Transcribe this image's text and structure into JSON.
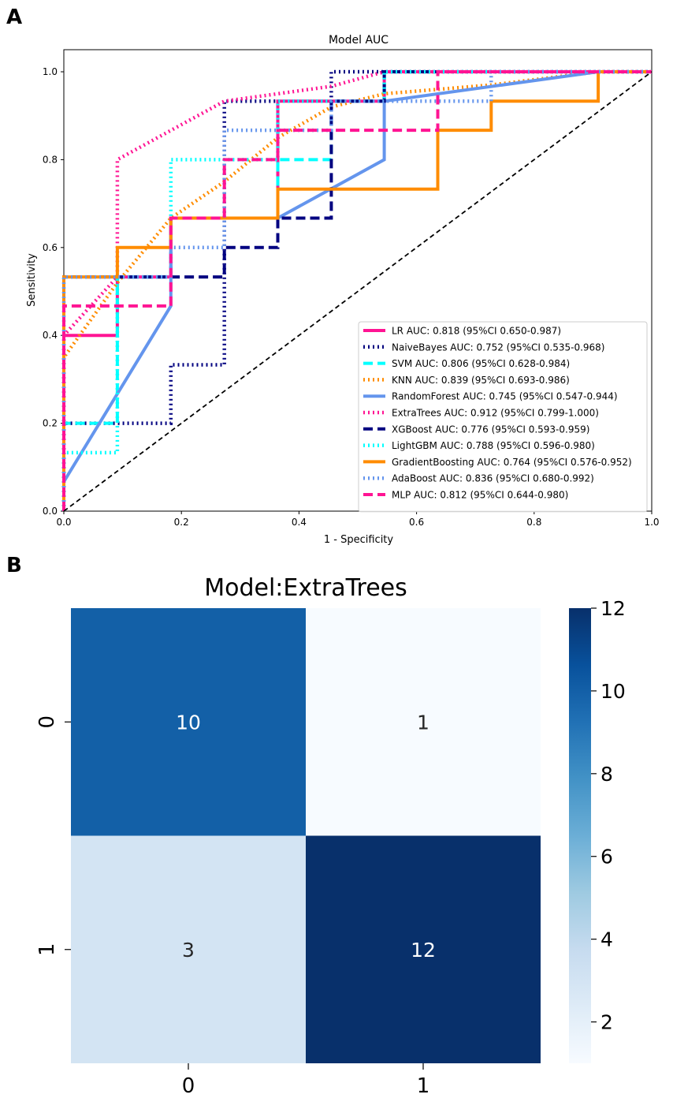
{
  "panels": {
    "a_label": "A",
    "b_label": "B"
  },
  "chart_data": [
    {
      "type": "line",
      "title": "Model AUC",
      "xlabel": "1 - Specificity",
      "ylabel": "Sensitivity",
      "xlim": [
        0,
        1
      ],
      "ylim": [
        0,
        1
      ],
      "xticks": [
        "0.0",
        "0.2",
        "0.4",
        "0.6",
        "0.8",
        "1.0"
      ],
      "yticks": [
        "0.0",
        "0.2",
        "0.4",
        "0.6",
        "0.8",
        "1.0"
      ],
      "grid": false,
      "legend_position": "lower-right",
      "reference_line": {
        "x": [
          0,
          1
        ],
        "y": [
          0,
          1
        ],
        "style": "dashed",
        "color": "#000000"
      },
      "series": [
        {
          "name": "LR AUC: 0.818 (95%CI 0.650-0.987)",
          "color": "#ff1493",
          "style": "solid",
          "x": [
            0,
            0,
            0.091,
            0.091,
            0.182,
            0.182,
            0.364,
            0.364,
            0.545,
            0.545,
            1.0
          ],
          "y": [
            0,
            0.4,
            0.4,
            0.533,
            0.533,
            0.667,
            0.667,
            0.933,
            0.933,
            1.0,
            1.0
          ]
        },
        {
          "name": "NaiveBayes AUC: 0.752 (95%CI 0.535-0.968)",
          "color": "#000080",
          "style": "dotted",
          "x": [
            0,
            0,
            0.182,
            0.182,
            0.273,
            0.273,
            0.455,
            0.455,
            1.0
          ],
          "y": [
            0,
            0.2,
            0.2,
            0.333,
            0.333,
            0.933,
            0.933,
            1.0,
            1.0
          ]
        },
        {
          "name": "SVM AUC: 0.806 (95%CI 0.628-0.984)",
          "color": "#00ffff",
          "style": "dashed",
          "x": [
            0,
            0,
            0.091,
            0.091,
            0.182,
            0.182,
            0.364,
            0.364,
            0.455,
            0.455,
            0.545,
            0.545,
            0.909,
            1.0
          ],
          "y": [
            0,
            0.2,
            0.2,
            0.533,
            0.533,
            0.667,
            0.667,
            0.8,
            0.8,
            0.933,
            0.933,
            1.0,
            1.0,
            1.0
          ]
        },
        {
          "name": "KNN AUC: 0.839 (95%CI 0.693-0.986)",
          "color": "#ff8c00",
          "style": "dotted",
          "x": [
            0,
            0,
            0.091,
            0.182,
            0.273,
            0.364,
            0.455,
            0.545,
            0.727,
            0.909,
            1.0
          ],
          "y": [
            0,
            0.35,
            0.52,
            0.667,
            0.75,
            0.85,
            0.92,
            0.95,
            0.97,
            1.0,
            1.0
          ]
        },
        {
          "name": "RandomForest AUC: 0.745 (95%CI 0.547-0.944)",
          "color": "#6495ed",
          "style": "solid",
          "x": [
            0,
            0,
            0.182,
            0.182,
            0.364,
            0.545,
            0.545,
            0.909,
            1.0
          ],
          "y": [
            0,
            0.067,
            0.467,
            0.667,
            0.667,
            0.8,
            0.933,
            1.0,
            1.0
          ]
        },
        {
          "name": "ExtraTrees AUC: 0.912 (95%CI 0.799-1.000)",
          "color": "#ff1493",
          "style": "dotted",
          "x": [
            0,
            0,
            0.091,
            0.091,
            0.273,
            0.455,
            0.545,
            1.0
          ],
          "y": [
            0,
            0.4,
            0.533,
            0.8,
            0.933,
            0.967,
            1.0,
            1.0
          ]
        },
        {
          "name": "XGBoost AUC: 0.776 (95%CI 0.593-0.959)",
          "color": "#000080",
          "style": "dashed",
          "x": [
            0,
            0,
            0.091,
            0.091,
            0.273,
            0.273,
            0.364,
            0.364,
            0.455,
            0.455,
            0.545,
            0.545,
            1.0
          ],
          "y": [
            0,
            0.533,
            0.533,
            0.533,
            0.533,
            0.6,
            0.6,
            0.667,
            0.667,
            0.933,
            0.933,
            1.0,
            1.0
          ]
        },
        {
          "name": "LightGBM AUC: 0.788 (95%CI 0.596-0.980)",
          "color": "#00ffff",
          "style": "dotted",
          "x": [
            0,
            0,
            0.091,
            0.091,
            0.182,
            0.182,
            0.364,
            0.364,
            0.545,
            0.545,
            1.0
          ],
          "y": [
            0,
            0.133,
            0.133,
            0.533,
            0.533,
            0.8,
            0.8,
            0.933,
            0.933,
            1.0,
            1.0
          ]
        },
        {
          "name": "GradientBoosting AUC: 0.764 (95%CI 0.576-0.952)",
          "color": "#ff8c00",
          "style": "solid",
          "x": [
            0,
            0,
            0.091,
            0.091,
            0.182,
            0.182,
            0.364,
            0.364,
            0.636,
            0.636,
            0.727,
            0.727,
            0.909,
            0.909,
            1.0
          ],
          "y": [
            0,
            0.533,
            0.533,
            0.6,
            0.6,
            0.667,
            0.667,
            0.733,
            0.733,
            0.867,
            0.867,
            0.933,
            0.933,
            1.0,
            1.0
          ]
        },
        {
          "name": "AdaBoost AUC: 0.836 (95%CI 0.680-0.992)",
          "color": "#6495ed",
          "style": "dotted",
          "x": [
            0,
            0,
            0.091,
            0.091,
            0.182,
            0.182,
            0.273,
            0.273,
            0.455,
            0.455,
            0.727,
            0.727,
            1.0
          ],
          "y": [
            0,
            0.533,
            0.533,
            0.533,
            0.533,
            0.6,
            0.6,
            0.867,
            0.867,
            0.933,
            0.933,
            1.0,
            1.0
          ]
        },
        {
          "name": "MLP AUC: 0.812 (95%CI 0.644-0.980)",
          "color": "#ff1493",
          "style": "dashed",
          "x": [
            0,
            0,
            0.091,
            0.091,
            0.182,
            0.182,
            0.273,
            0.273,
            0.364,
            0.364,
            0.636,
            0.636,
            1.0
          ],
          "y": [
            0,
            0.467,
            0.467,
            0.467,
            0.467,
            0.667,
            0.667,
            0.8,
            0.8,
            0.867,
            0.867,
            1.0,
            1.0
          ]
        }
      ]
    },
    {
      "type": "heatmap",
      "title": "Model:ExtraTrees",
      "row_labels": [
        "0",
        "1"
      ],
      "col_labels": [
        "0",
        "1"
      ],
      "values": [
        [
          10,
          1
        ],
        [
          3,
          12
        ]
      ],
      "colormap": "Blues",
      "colorbar": {
        "min": 1,
        "max": 12,
        "ticks": [
          "2",
          "4",
          "6",
          "8",
          "10",
          "12"
        ]
      }
    }
  ]
}
